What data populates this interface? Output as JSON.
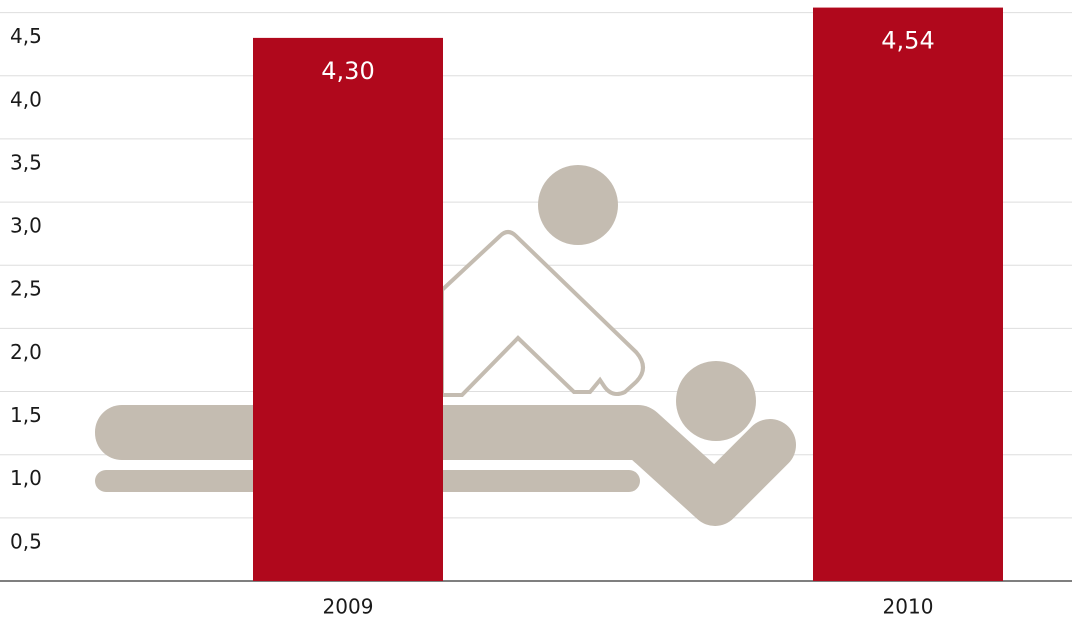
{
  "chart_data": {
    "type": "bar",
    "categories": [
      "2009",
      "2010"
    ],
    "values": [
      4.3,
      4.54
    ],
    "value_labels": [
      "4,30",
      "4,54"
    ],
    "color": "#b0081c",
    "ylim": [
      0,
      4.6
    ],
    "yticks": [
      {
        "value": 0.5,
        "label": "0,5"
      },
      {
        "value": 1.0,
        "label": "1,0"
      },
      {
        "value": 1.5,
        "label": "1,5"
      },
      {
        "value": 2.0,
        "label": "2,0"
      },
      {
        "value": 2.5,
        "label": "2,5"
      },
      {
        "value": 3.0,
        "label": "3,0"
      },
      {
        "value": 3.5,
        "label": "3,5"
      },
      {
        "value": 4.0,
        "label": "4,0"
      },
      {
        "value": 4.5,
        "label": "4,5"
      }
    ],
    "grid": true
  }
}
